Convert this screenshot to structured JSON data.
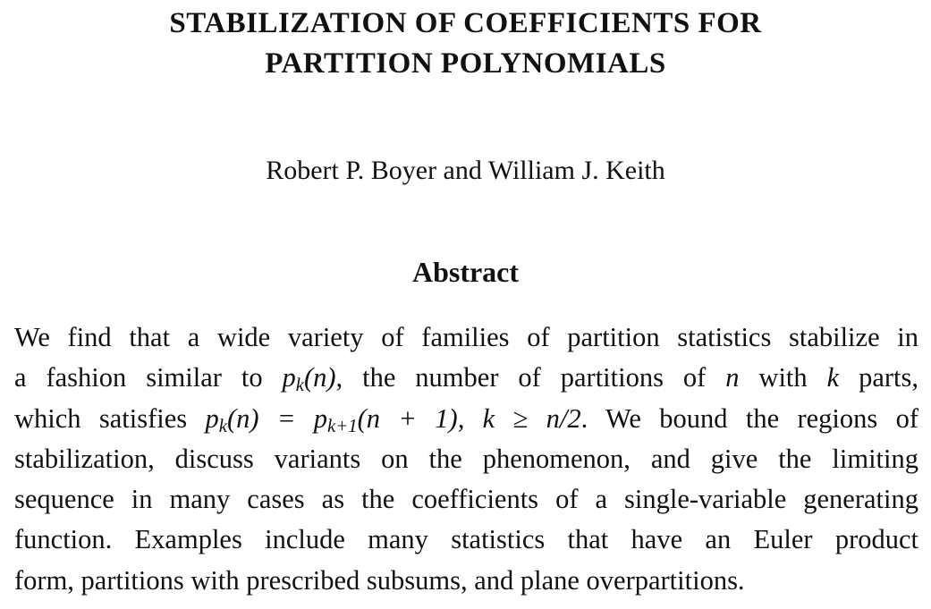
{
  "title": {
    "line1": "STABILIZATION OF COEFFICIENTS FOR",
    "line2": "PARTITION POLYNOMIALS"
  },
  "authors": "Robert P. Boyer and William J. Keith",
  "abstract": {
    "heading": "Abstract",
    "l1": "We find that a wide variety of families of partition statistics stabilize in",
    "l2a": "a fashion similar to ",
    "l2p": "p",
    "l2k": "k",
    "l2n": "(n)",
    "l2b": ", the number of partitions of ",
    "l2c": "n",
    "l2d": " with ",
    "l2e": "k",
    "l2f": " parts,",
    "l3a": "which satisfies ",
    "l3p": "p",
    "l3k": "k",
    "l3n": "(n) = p",
    "l3k1": "k+1",
    "l3n1": "(n + 1), k ≥ n/2",
    "l3b": ". We bound the regions of",
    "l4": "stabilization, discuss variants on the phenomenon, and give the limiting",
    "l5": "sequence in many cases as the coefficients of a single-variable generating",
    "l6": "function. Examples include many statistics that have an Euler product",
    "l7": "form, partitions with prescribed subsums, and plane overpartitions."
  }
}
